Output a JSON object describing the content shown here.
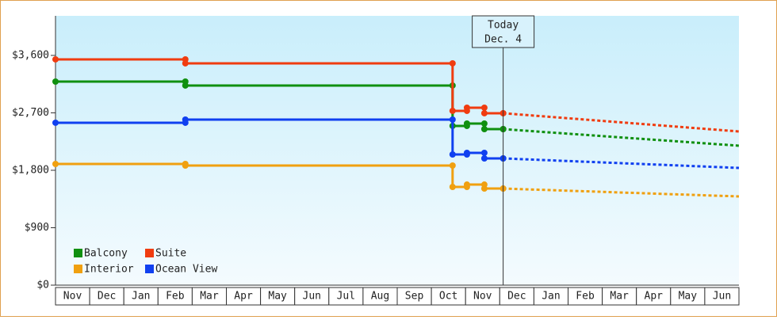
{
  "chart_data": {
    "type": "step-line",
    "categories": [
      "Nov",
      "Dec",
      "Jan",
      "Feb",
      "Mar",
      "Apr",
      "May",
      "Jun",
      "Jul",
      "Aug",
      "Sep",
      "Oct",
      "Nov",
      "Dec",
      "Jan",
      "Feb",
      "Mar",
      "Apr",
      "May",
      "Jun"
    ],
    "x": [
      0,
      3.8,
      11.62,
      12.04,
      12.55,
      13.1
    ],
    "xlim": [
      0,
      20
    ],
    "ylim": [
      0,
      4220
    ],
    "yticks": [
      {
        "value": 0,
        "label": "$0"
      },
      {
        "value": 900,
        "label": "$900"
      },
      {
        "value": 1800,
        "label": "$1,800"
      },
      {
        "value": 2700,
        "label": "$2,700"
      },
      {
        "value": 3600,
        "label": "$3,600"
      }
    ],
    "series": [
      {
        "name": "Balcony",
        "color": "#109010",
        "values": [
          3190,
          3128,
          2495,
          2532,
          2445,
          2445
        ],
        "forecast": 2185
      },
      {
        "name": "Suite",
        "color": "#f03c10",
        "values": [
          3538,
          3476,
          2731,
          2781,
          2694,
          2694
        ],
        "forecast": 2408
      },
      {
        "name": "Interior",
        "color": "#f0a010",
        "values": [
          1899,
          1874,
          1539,
          1576,
          1514,
          1514
        ],
        "forecast": 1390
      },
      {
        "name": "Ocean View",
        "color": "#1040f0",
        "values": [
          2545,
          2594,
          2048,
          2073,
          1986,
          1986
        ],
        "forecast": 1837
      }
    ],
    "today": {
      "x": 13.1,
      "label": [
        "Today",
        "Dec. 4"
      ]
    }
  }
}
